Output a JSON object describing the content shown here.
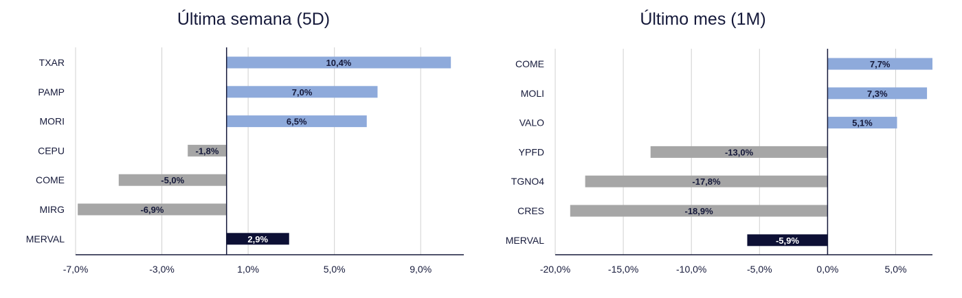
{
  "colors": {
    "positive": "#8eaadb",
    "negative": "#a6a6a6",
    "index": "#0d1035",
    "grid": "#d0d0d0",
    "axis": "#15193a",
    "text": "#15193a"
  },
  "chart_data": [
    {
      "type": "bar",
      "orientation": "horizontal",
      "title": "Última semana (5D)",
      "categories": [
        "TXAR",
        "PAMP",
        "MORI",
        "CEPU",
        "COME",
        "MIRG",
        "MERVAL"
      ],
      "values": [
        10.4,
        7.0,
        6.5,
        -1.8,
        -5.0,
        -6.9,
        2.9
      ],
      "data_labels": [
        "10,4%",
        "7,0%",
        "6,5%",
        "-1,8%",
        "-5,0%",
        "-6,9%",
        "2,9%"
      ],
      "xlim": [
        -7.0,
        11.0
      ],
      "ticks": [
        -7.0,
        -3.0,
        1.0,
        5.0,
        9.0
      ],
      "tick_labels": [
        "-7,0%",
        "-3,0%",
        "1,0%",
        "5,0%",
        "9,0%"
      ],
      "grid": true
    },
    {
      "type": "bar",
      "orientation": "horizontal",
      "title": "Último mes (1M)",
      "categories": [
        "COME",
        "MOLI",
        "VALO",
        "YPFD",
        "TGNO4",
        "CRES",
        "MERVAL"
      ],
      "values": [
        7.7,
        7.3,
        5.1,
        -13.0,
        -17.8,
        -18.9,
        -5.9
      ],
      "data_labels": [
        "7,7%",
        "7,3%",
        "5,1%",
        "-13,0%",
        "-17,8%",
        "-18,9%",
        "-5,9%"
      ],
      "xlim": [
        -20.0,
        7.7
      ],
      "ticks": [
        -20.0,
        -15.0,
        -10.0,
        -5.0,
        0.0,
        5.0
      ],
      "tick_labels": [
        "-20,0%",
        "-15,0%",
        "-10,0%",
        "-5,0%",
        "0,0%",
        "5,0%"
      ],
      "grid": true
    }
  ]
}
